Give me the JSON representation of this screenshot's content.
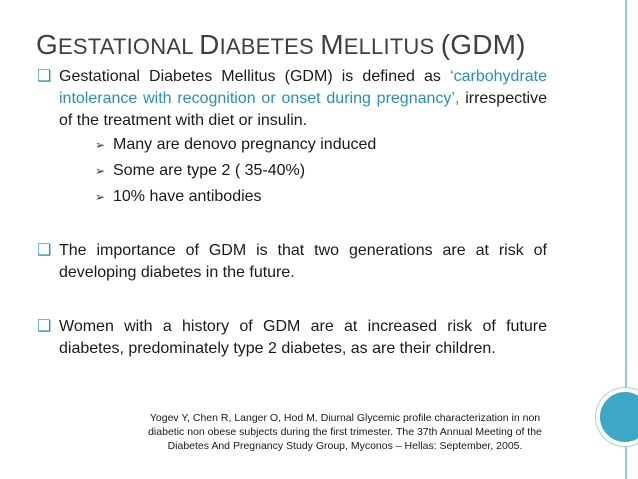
{
  "title": {
    "parts": [
      {
        "cap": "G",
        "rest": "ESTATIONAL "
      },
      {
        "cap": "D",
        "rest": "IABETES "
      },
      {
        "cap": "M",
        "rest": "ELLITUS "
      }
    ],
    "abbr": "(GDM)"
  },
  "bullets": [
    {
      "pre": "Gestational Diabetes Mellitus (GDM) is defined as",
      "highlight": "‘carbohydrate intolerance with recognition or onset during pregnancy’,",
      "post": " irrespective of the treatment with diet or insulin.",
      "subitems": [
        "Many are denovo pregnancy induced",
        "Some are type 2 ( 35-40%)",
        "10% have antibodies"
      ]
    },
    {
      "text": "The importance of GDM is that two generations are at risk of developing diabetes in the future."
    },
    {
      "text": "Women with a history of GDM are at increased risk of future diabetes, predominately type 2 diabetes, as are their children."
    }
  ],
  "reference": "Yogev Y, Chen R, Langer O, Hod M. Diurnal Glycemic profile characterization in non diabetic non obese subjects during the first trimester. The 37th Annual Meeting of the Diabetes And Pregnancy Study Group, Myconos – Hellas: September, 2005.",
  "colors": {
    "accent": "#2b8fb5",
    "border": "#8ccbd9",
    "title": "#404040"
  },
  "icons": {
    "bullet": "square-bullet-icon",
    "sub": "arrow-bullet-icon"
  }
}
